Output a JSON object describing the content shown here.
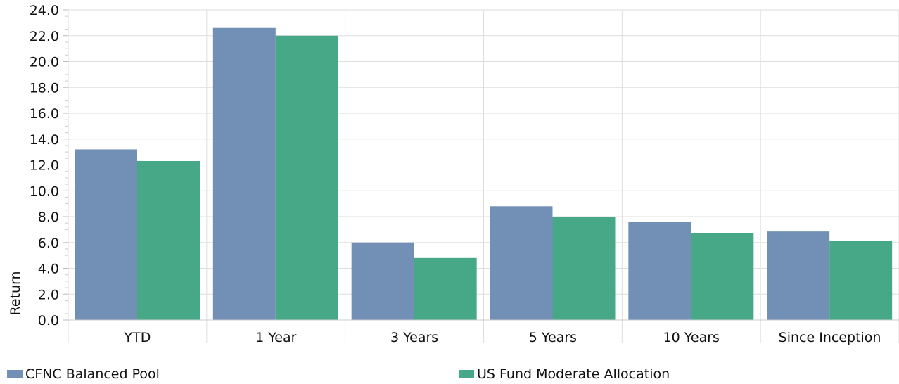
{
  "chart_data": {
    "type": "bar",
    "title": "",
    "xlabel": "",
    "ylabel": "Return",
    "ylim": [
      0,
      24
    ],
    "y_major_step": 2,
    "y_tick_labels": [
      "0.0",
      "2.0",
      "4.0",
      "6.0",
      "8.0",
      "10.0",
      "12.0",
      "14.0",
      "16.0",
      "18.0",
      "20.0",
      "22.0",
      "24.0"
    ],
    "categories": [
      "YTD",
      "1 Year",
      "3 Years",
      "5 Years",
      "10 Years",
      "Since Inception"
    ],
    "series": [
      {
        "name": "CFNC Balanced Pool",
        "color": "#728FB5",
        "values": [
          13.2,
          22.6,
          6.0,
          8.8,
          7.6,
          6.85
        ]
      },
      {
        "name": "US Fund Moderate Allocation",
        "color": "#46A887",
        "values": [
          12.3,
          22.0,
          4.8,
          8.0,
          6.7,
          6.1
        ]
      }
    ],
    "grid": true,
    "legend_position": "bottom"
  }
}
